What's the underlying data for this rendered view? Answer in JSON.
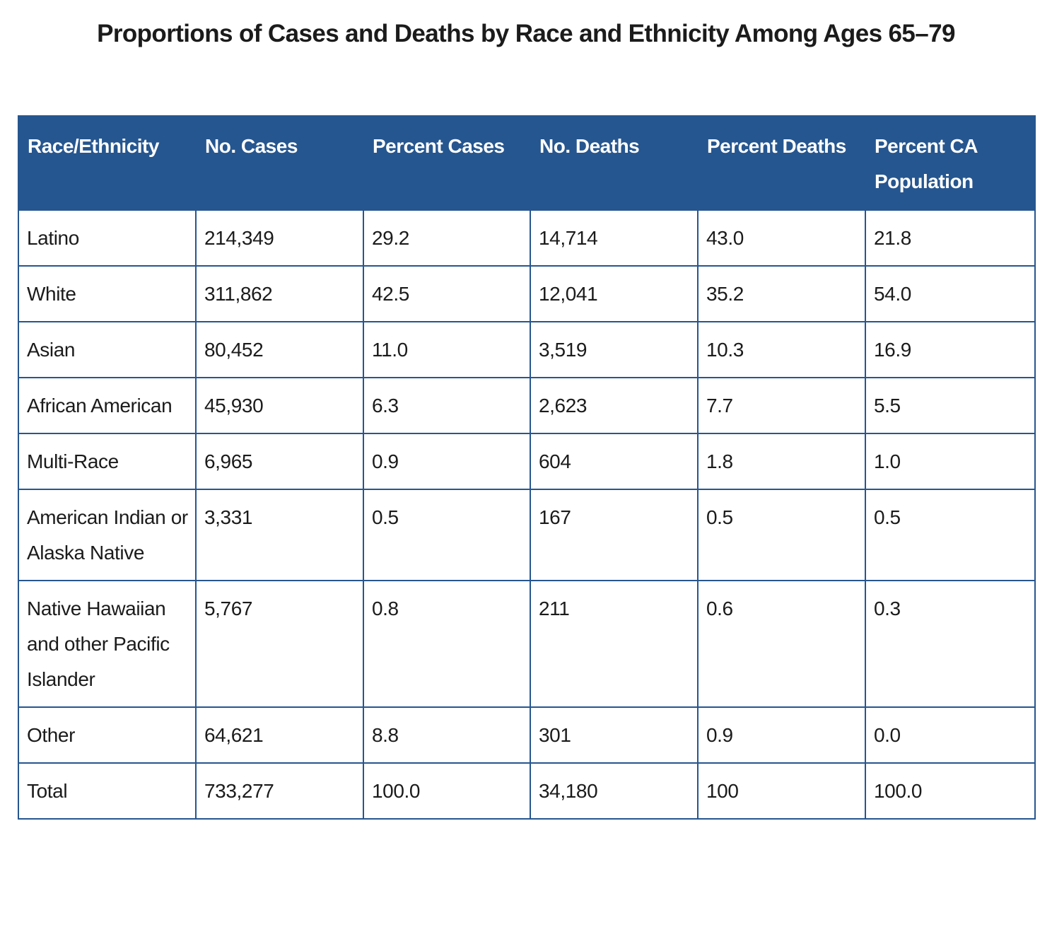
{
  "page": {
    "title": "Proportions of Cases and Deaths by Race and Ethnicity Among Ages 65–79"
  },
  "colors": {
    "header_background": "#26568f",
    "header_text": "#ffffff",
    "border": "#26568f",
    "body_text": "#1b1b1b"
  },
  "table": {
    "columns": [
      "Race/Ethnicity",
      "No. Cases",
      "Percent Cases",
      "No. Deaths",
      "Percent Deaths",
      "Percent CA Population"
    ],
    "rows": [
      [
        "Latino",
        "214,349",
        "29.2",
        "14,714",
        "43.0",
        "21.8"
      ],
      [
        "White",
        "311,862",
        "42.5",
        "12,041",
        "35.2",
        "54.0"
      ],
      [
        "Asian",
        "80,452",
        "11.0",
        "3,519",
        "10.3",
        "16.9"
      ],
      [
        "African American",
        "45,930",
        "6.3",
        "2,623",
        "7.7",
        "5.5"
      ],
      [
        "Multi-Race",
        "6,965",
        "0.9",
        "604",
        "1.8",
        "1.0"
      ],
      [
        "American Indian or Alaska Native",
        "3,331",
        "0.5",
        "167",
        "0.5",
        "0.5"
      ],
      [
        "Native Hawaiian and other Pacific Islander",
        "5,767",
        "0.8",
        "211",
        "0.6",
        "0.3"
      ],
      [
        "Other",
        "64,621",
        "8.8",
        "301",
        "0.9",
        "0.0"
      ],
      [
        "Total",
        "733,277",
        "100.0",
        "34,180",
        "100",
        "100.0"
      ]
    ]
  }
}
